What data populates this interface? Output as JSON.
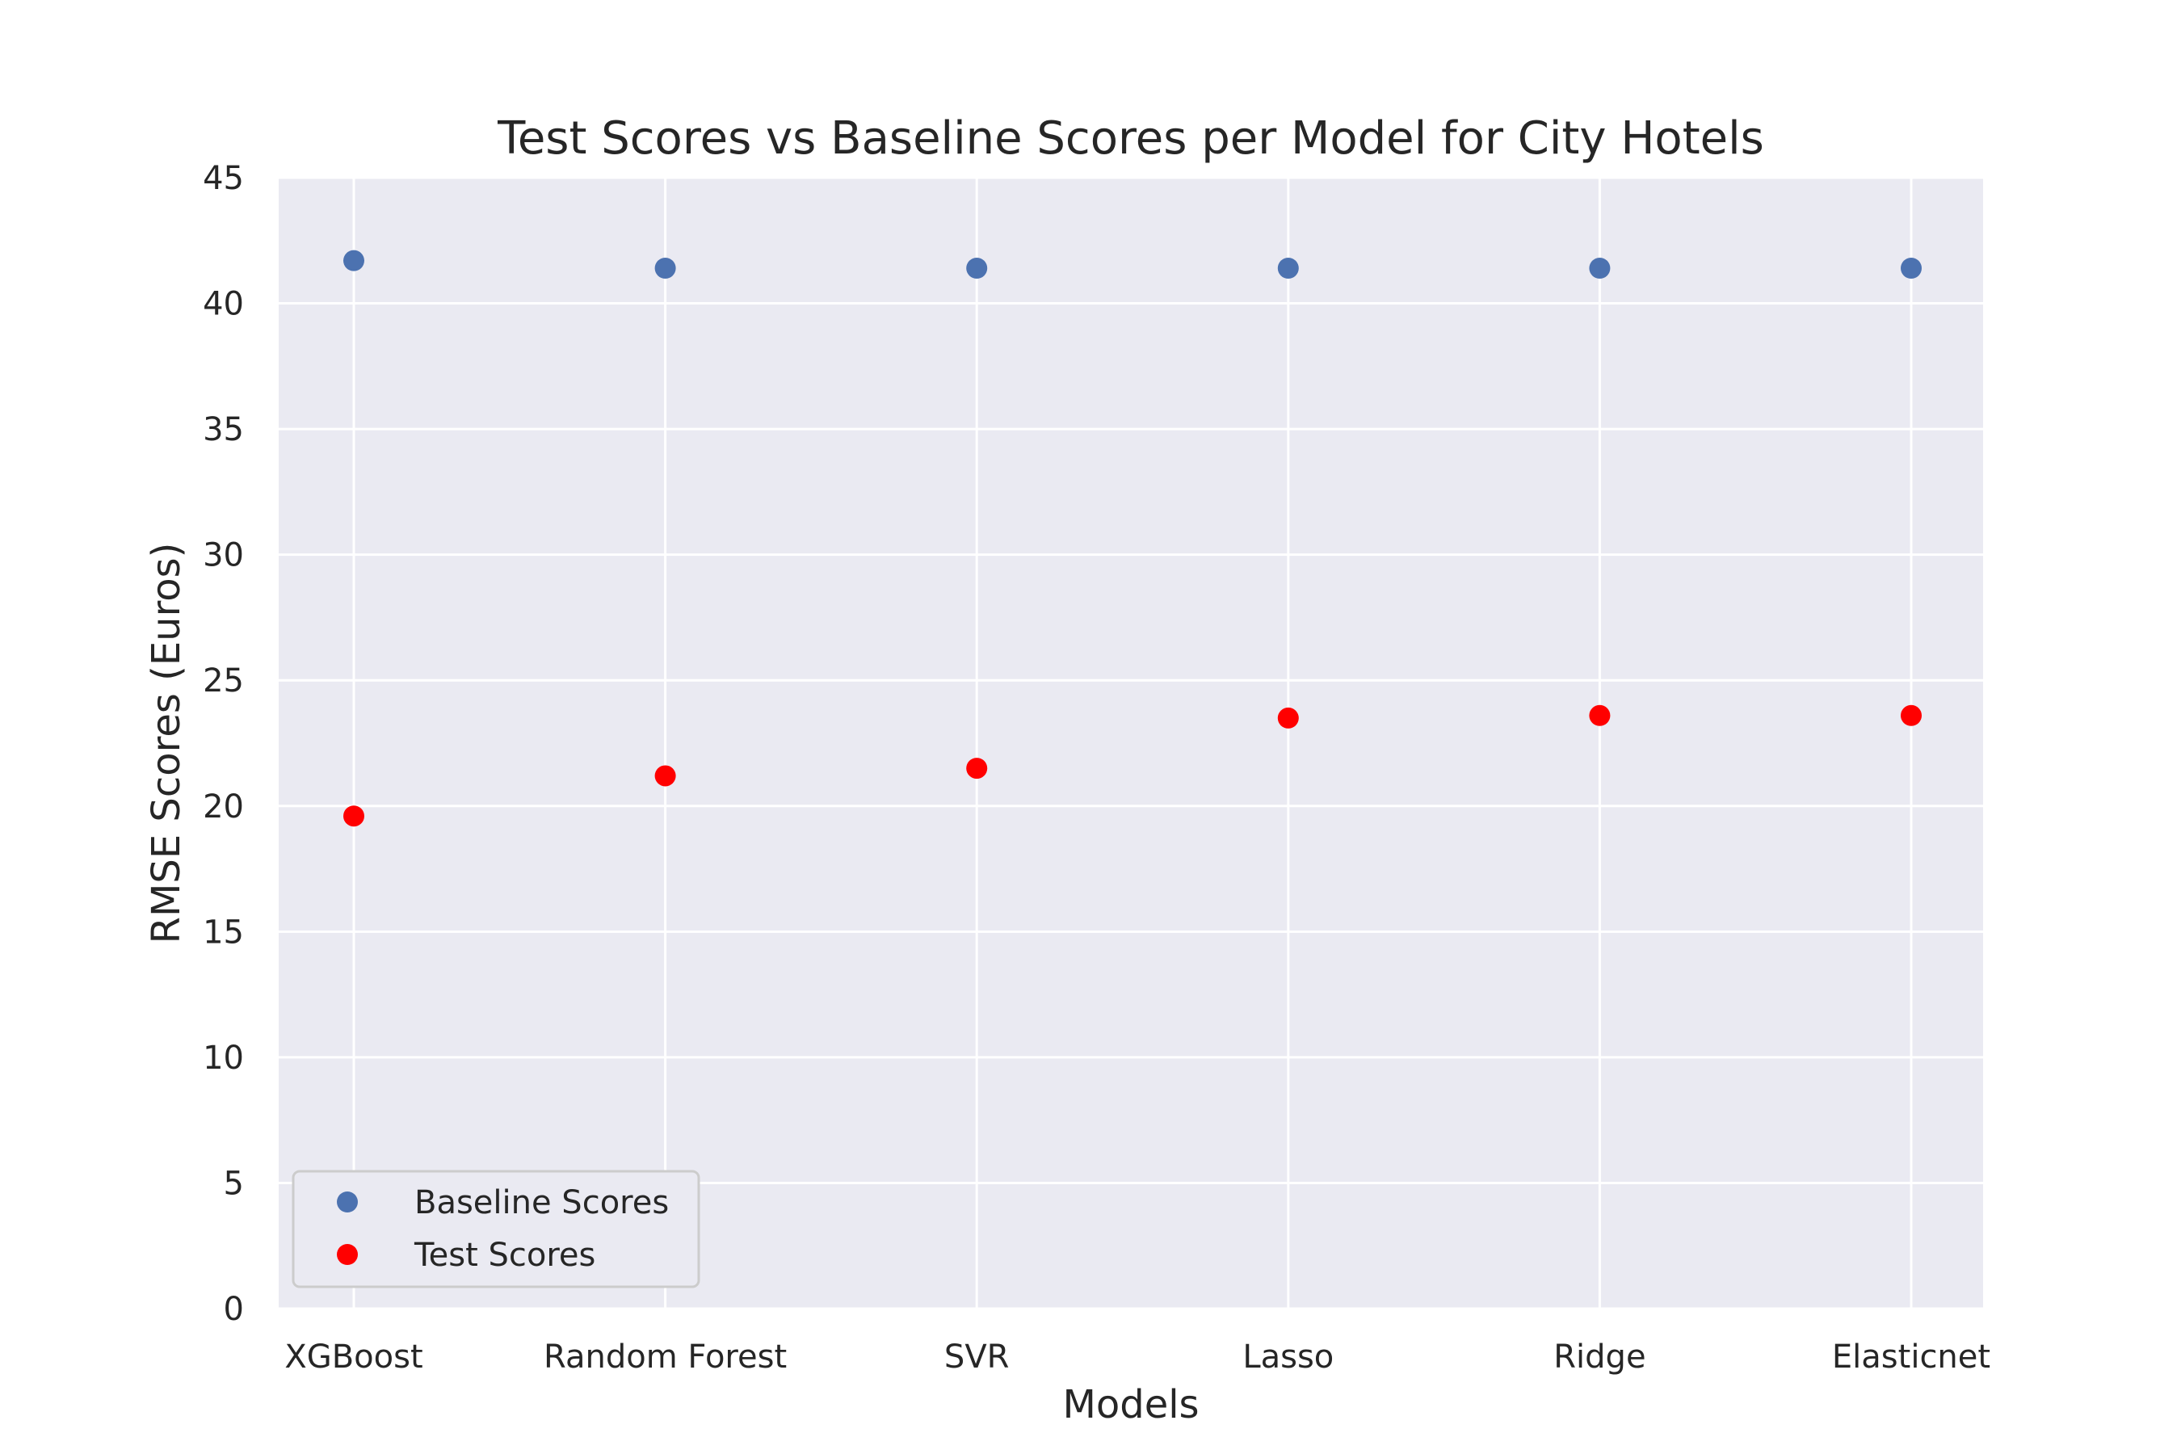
{
  "chart_data": {
    "type": "scatter",
    "title": "Test Scores vs Baseline Scores per Model for City Hotels",
    "xlabel": "Models",
    "ylabel": "RMSE Scores (Euros)",
    "categories": [
      "XGBoost",
      "Random Forest",
      "SVR",
      "Lasso",
      "Ridge",
      "Elasticnet"
    ],
    "ylim": [
      0,
      45
    ],
    "yticks": [
      "0",
      "5",
      "10",
      "15",
      "20",
      "25",
      "30",
      "35",
      "40",
      "45"
    ],
    "grid": true,
    "legend_position": "lower-left",
    "series": [
      {
        "name": "Baseline Scores",
        "color": "#4c72b0",
        "values": [
          41.7,
          41.4,
          41.4,
          41.4,
          41.4,
          41.4
        ]
      },
      {
        "name": "Test Scores",
        "color": "#ff0000",
        "values": [
          19.6,
          21.2,
          21.5,
          23.5,
          23.6,
          23.6
        ]
      }
    ]
  }
}
